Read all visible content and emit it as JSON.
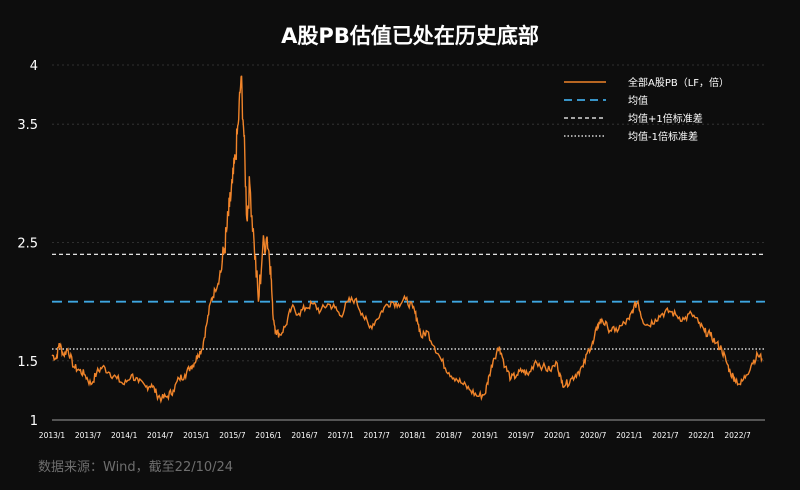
{
  "chart_data": {
    "type": "line",
    "title": "A股PB估值已处在历史底部",
    "ylim": [
      1,
      4
    ],
    "yticks": [
      "1",
      "1.5",
      "2.5",
      "3.5",
      "4"
    ],
    "ytick_values": [
      1,
      1.5,
      2.5,
      3.5,
      4
    ],
    "x_tick_labels": [
      "2013/1",
      "2013/7",
      "2014/1",
      "2014/7",
      "2015/1",
      "2015/7",
      "2016/1",
      "2016/7",
      "2017/1",
      "2017/7",
      "2018/1",
      "2018/7",
      "2019/1",
      "2019/7",
      "2020/1",
      "2020/7",
      "2021/1",
      "2021/7",
      "2022/1",
      "2022/7"
    ],
    "x_range": [
      2013.0,
      2022.88
    ],
    "grid": true,
    "legend_position": "top-right",
    "colors": {
      "series": "#f0842a",
      "mean": "#3ea6e0",
      "plus": "#ffffff",
      "minus": "#ffffff"
    },
    "series": [
      {
        "name": "全部A股PB（LF，倍）",
        "x": [
          2013.0,
          2013.06,
          2013.1,
          2013.16,
          2013.22,
          2013.3,
          2013.38,
          2013.46,
          2013.54,
          2013.62,
          2013.7,
          2013.8,
          2013.9,
          2014.0,
          2014.1,
          2014.2,
          2014.3,
          2014.38,
          2014.45,
          2014.52,
          2014.6,
          2014.68,
          2014.76,
          2014.84,
          2014.92,
          2014.97,
          2015.02,
          2015.08,
          2015.14,
          2015.2,
          2015.26,
          2015.32,
          2015.38,
          2015.42,
          2015.46,
          2015.5,
          2015.54,
          2015.58,
          2015.62,
          2015.66,
          2015.7,
          2015.74,
          2015.8,
          2015.86,
          2015.92,
          2015.98,
          2016.03,
          2016.06,
          2016.1,
          2016.16,
          2016.24,
          2016.32,
          2016.42,
          2016.52,
          2016.62,
          2016.72,
          2016.82,
          2016.92,
          2017.0,
          2017.1,
          2017.2,
          2017.3,
          2017.4,
          2017.5,
          2017.6,
          2017.7,
          2017.8,
          2017.9,
          2018.0,
          2018.06,
          2018.12,
          2018.2,
          2018.3,
          2018.4,
          2018.5,
          2018.6,
          2018.7,
          2018.8,
          2018.9,
          2019.0,
          2019.06,
          2019.12,
          2019.2,
          2019.28,
          2019.36,
          2019.44,
          2019.52,
          2019.6,
          2019.7,
          2019.8,
          2019.9,
          2020.0,
          2020.06,
          2020.12,
          2020.2,
          2020.28,
          2020.36,
          2020.44,
          2020.5,
          2020.56,
          2020.62,
          2020.7,
          2020.8,
          2020.9,
          2021.0,
          2021.06,
          2021.12,
          2021.18,
          2021.26,
          2021.36,
          2021.46,
          2021.56,
          2021.66,
          2021.76,
          2021.86,
          2021.96,
          2022.04,
          2022.12,
          2022.2,
          2022.28,
          2022.34,
          2022.4,
          2022.46,
          2022.54,
          2022.62,
          2022.7,
          2022.78,
          2022.84
        ],
        "y": [
          1.55,
          1.52,
          1.65,
          1.55,
          1.6,
          1.45,
          1.42,
          1.38,
          1.3,
          1.4,
          1.45,
          1.4,
          1.35,
          1.3,
          1.38,
          1.32,
          1.28,
          1.3,
          1.22,
          1.18,
          1.2,
          1.25,
          1.35,
          1.38,
          1.45,
          1.48,
          1.55,
          1.6,
          1.8,
          2.0,
          2.1,
          2.2,
          2.4,
          2.6,
          2.8,
          3.0,
          3.2,
          3.5,
          3.9,
          3.4,
          2.7,
          3.0,
          2.5,
          2.0,
          2.45,
          2.55,
          2.3,
          1.9,
          1.75,
          1.72,
          1.8,
          1.95,
          1.9,
          1.95,
          1.98,
          1.92,
          1.98,
          1.95,
          1.88,
          2.0,
          2.02,
          1.9,
          1.78,
          1.85,
          1.95,
          2.0,
          1.98,
          2.02,
          1.95,
          1.85,
          1.7,
          1.75,
          1.62,
          1.5,
          1.4,
          1.35,
          1.3,
          1.25,
          1.2,
          1.22,
          1.38,
          1.52,
          1.62,
          1.45,
          1.35,
          1.38,
          1.42,
          1.38,
          1.5,
          1.45,
          1.42,
          1.48,
          1.32,
          1.3,
          1.35,
          1.4,
          1.45,
          1.6,
          1.65,
          1.8,
          1.85,
          1.78,
          1.75,
          1.8,
          1.85,
          1.95,
          2.0,
          1.85,
          1.8,
          1.85,
          1.9,
          1.92,
          1.88,
          1.85,
          1.9,
          1.82,
          1.75,
          1.72,
          1.65,
          1.6,
          1.5,
          1.4,
          1.35,
          1.3,
          1.38,
          1.48,
          1.55,
          1.52
        ]
      },
      {
        "name": "均值",
        "value": 2.0
      },
      {
        "name": "均值+1倍标准差",
        "value": 2.4
      },
      {
        "name": "均值-1倍标准差",
        "value": 1.6
      }
    ],
    "source": "数据来源：Wind，截至22/10/24"
  }
}
